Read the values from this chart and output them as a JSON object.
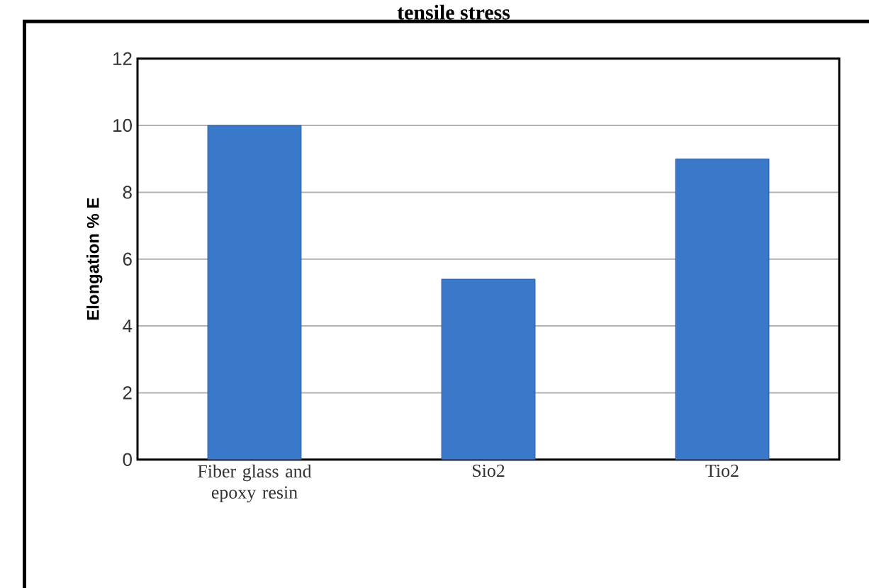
{
  "chart_data": {
    "type": "bar",
    "title": "tensile stress",
    "ylabel": "Elongation % E",
    "categories": [
      "Fiber glass and epoxy resin",
      "Sio2",
      "Tio2"
    ],
    "values": [
      10,
      5.4,
      9.0
    ],
    "color": "#3a78c9",
    "ylim": [
      0,
      12
    ],
    "yticks": [
      0,
      2,
      4,
      6,
      8,
      10,
      12
    ],
    "grid": "y"
  }
}
